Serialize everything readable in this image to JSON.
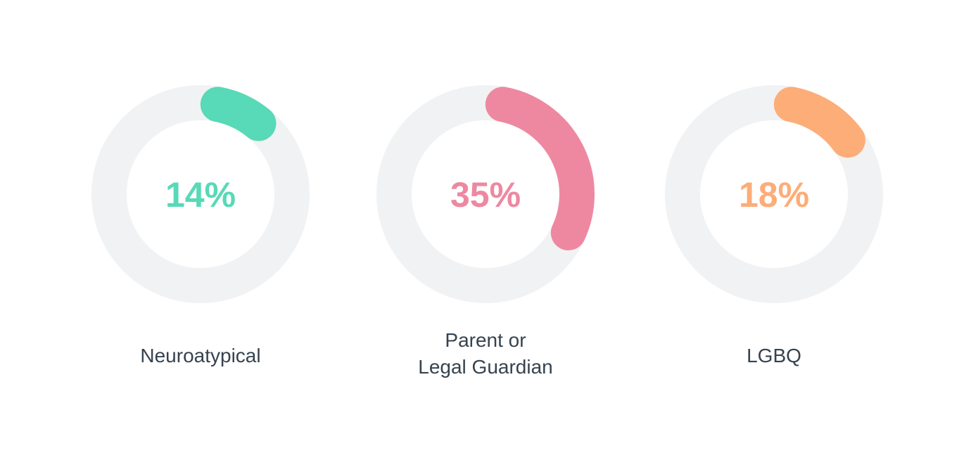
{
  "chart_data": [
    {
      "type": "donut",
      "value": 14,
      "value_label": "14%",
      "label": [
        "Neuroatypical"
      ],
      "color": "#58d9b7",
      "track_color": "#f1f2f4"
    },
    {
      "type": "donut",
      "value": 35,
      "value_label": "35%",
      "label": [
        "Parent or",
        "Legal Guardian"
      ],
      "color": "#ee88a1",
      "track_color": "#f1f2f4"
    },
    {
      "type": "donut",
      "value": 18,
      "value_label": "18%",
      "label": [
        "LGBQ"
      ],
      "color": "#fdad78",
      "track_color": "#f1f2f4"
    }
  ]
}
